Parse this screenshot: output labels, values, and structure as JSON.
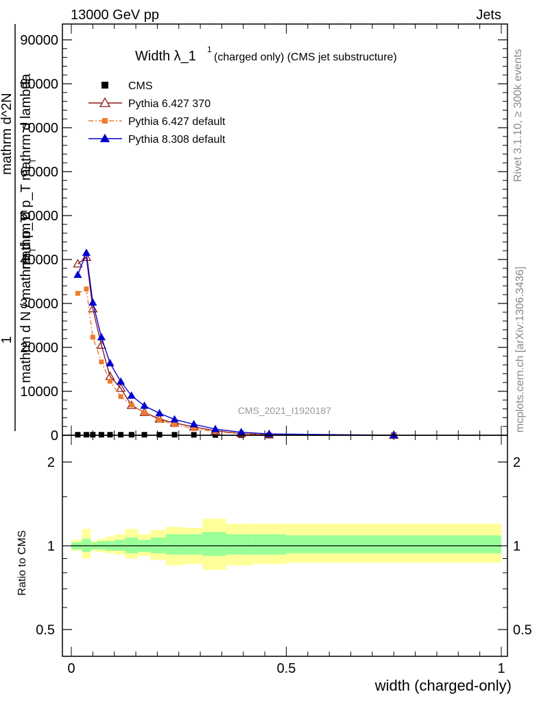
{
  "header": {
    "energy": "13000 GeV pp",
    "process": "Jets"
  },
  "side": {
    "rivet": "Rivet 3.1.10, ≥ 300k events",
    "source": "mcplots.cern.ch [arXiv:1306.3436]"
  },
  "chart_data": {
    "type": "line",
    "title": "Width λ_1",
    "title_sup": "1",
    "subtitle": "(charged only) (CMS jet substructure)",
    "analysis_label": "CMS_2021_I1920187",
    "ylabel_lines": [
      "1",
      "mathrm d N / mathrm d p_T",
      "mathrm d^2N",
      "mathrm d p_T mathrm d lambda"
    ],
    "ylabel_sub": [
      "T",
      "T"
    ],
    "xlabel": "width (charged-only)",
    "xlim": [
      0,
      1
    ],
    "ylim": [
      0,
      90000
    ],
    "yticks": [
      0,
      10000,
      20000,
      30000,
      40000,
      50000,
      60000,
      70000,
      80000,
      90000
    ],
    "ytick_labels": [
      "0",
      "10000",
      "20000",
      "30000",
      "40000",
      "50000",
      "60000",
      "70000",
      "80000",
      "90000"
    ],
    "xticks": [
      0,
      0.5,
      1
    ],
    "xtick_labels": [
      "0",
      "0.5",
      "1"
    ],
    "legend": [
      {
        "name": "CMS",
        "color": "#000000",
        "marker": "square"
      },
      {
        "name": "Pythia 6.427 370",
        "color": "#8b1a1a",
        "marker": "open-triangle",
        "dash": "solid"
      },
      {
        "name": "Pythia 6.427 default",
        "color": "#ee7b2a",
        "marker": "small-square",
        "dash": "dashdot"
      },
      {
        "name": "Pythia 8.308 default",
        "color": "#0000cc",
        "marker": "filled-triangle",
        "dash": "solid"
      }
    ],
    "x": [
      0.015,
      0.035,
      0.05,
      0.07,
      0.09,
      0.115,
      0.14,
      0.17,
      0.205,
      0.24,
      0.285,
      0.335,
      0.395,
      0.46,
      0.75
    ],
    "series": [
      {
        "name": "CMS",
        "values": [
          120,
          120,
          120,
          120,
          120,
          120,
          120,
          120,
          120,
          120,
          100,
          60,
          30,
          15,
          5
        ]
      },
      {
        "name": "Pythia 6.427 370",
        "values": [
          39000,
          40500,
          28800,
          20500,
          13400,
          10700,
          6800,
          5200,
          3700,
          2800,
          1900,
          1000,
          400,
          100,
          0
        ]
      },
      {
        "name": "Pythia 6.427 default",
        "values": [
          32300,
          33300,
          22300,
          16700,
          12300,
          8800,
          6900,
          5100,
          3500,
          2400,
          1500,
          800,
          350,
          100,
          0
        ]
      },
      {
        "name": "Pythia 8.308 default",
        "values": [
          36500,
          41500,
          30200,
          22300,
          16400,
          12200,
          9000,
          6700,
          5000,
          3600,
          2500,
          1400,
          700,
          300,
          0
        ]
      }
    ],
    "ratio": {
      "ylabel": "Ratio to CMS",
      "yticks": [
        0.5,
        1,
        2
      ],
      "ytick_labels": [
        "0.5",
        "1",
        "2"
      ],
      "ylim": [
        0.4,
        2.4
      ],
      "bins": [
        0,
        0.025,
        0.045,
        0.06,
        0.08,
        0.1,
        0.125,
        0.155,
        0.185,
        0.22,
        0.26,
        0.305,
        0.36,
        0.42,
        0.5,
        1.0
      ],
      "stat_band": [
        [
          0.97,
          1.03
        ],
        [
          0.95,
          1.06
        ],
        [
          0.97,
          1.03
        ],
        [
          0.97,
          1.04
        ],
        [
          0.96,
          1.04
        ],
        [
          0.96,
          1.05
        ],
        [
          0.94,
          1.07
        ],
        [
          0.95,
          1.05
        ],
        [
          0.94,
          1.07
        ],
        [
          0.93,
          1.1
        ],
        [
          0.93,
          1.1
        ],
        [
          0.92,
          1.12
        ],
        [
          0.93,
          1.1
        ],
        [
          0.93,
          1.1
        ],
        [
          0.94,
          1.09
        ]
      ],
      "syst_band": [
        [
          0.96,
          1.05
        ],
        [
          0.9,
          1.15
        ],
        [
          0.96,
          1.04
        ],
        [
          0.95,
          1.06
        ],
        [
          0.94,
          1.08
        ],
        [
          0.93,
          1.1
        ],
        [
          0.9,
          1.15
        ],
        [
          0.92,
          1.1
        ],
        [
          0.89,
          1.14
        ],
        [
          0.85,
          1.17
        ],
        [
          0.86,
          1.16
        ],
        [
          0.82,
          1.25
        ],
        [
          0.85,
          1.2
        ],
        [
          0.86,
          1.2
        ],
        [
          0.87,
          1.2
        ]
      ]
    }
  }
}
